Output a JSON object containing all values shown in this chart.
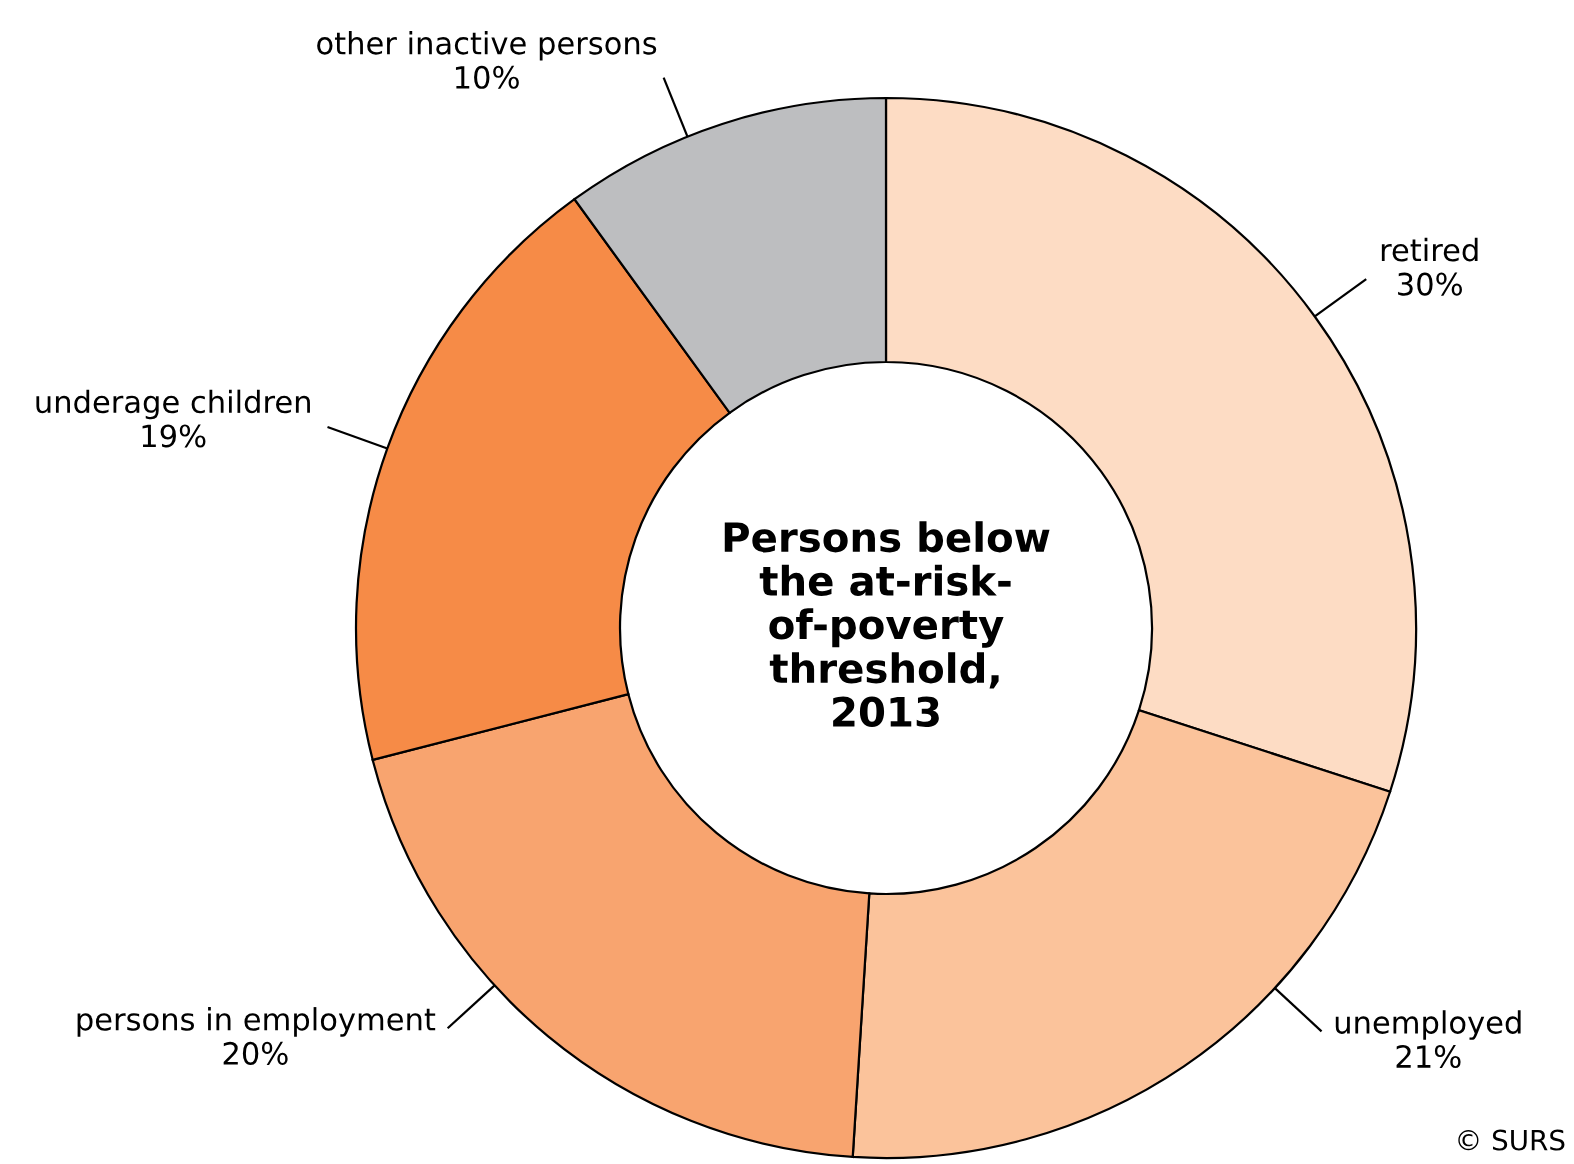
{
  "chart_data": {
    "type": "donut",
    "title": "Persons below\nthe at-risk-\nof-poverty\nthreshold,\n2013",
    "categories": [
      "retired",
      "unemployed",
      "persons in employment",
      "underage children",
      "other inactive persons"
    ],
    "values": [
      30,
      21,
      20,
      19,
      10
    ],
    "value_labels": [
      "30%",
      "21%",
      "20%",
      "19%",
      "10%"
    ],
    "colors": [
      "#fddcc4",
      "#fbc39b",
      "#f8a46f",
      "#f68b47",
      "#bdbec0"
    ],
    "annotations": [
      "© SURS"
    ]
  }
}
